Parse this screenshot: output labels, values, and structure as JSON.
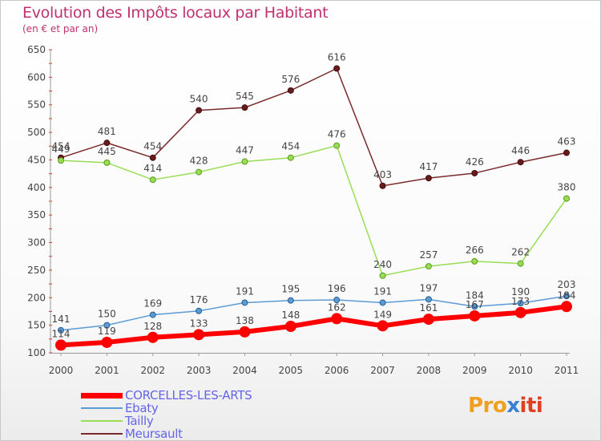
{
  "header": {
    "title": "Evolution des Impôts locaux par Habitant",
    "subtitle": "(en € et par an)"
  },
  "logo": {
    "text_parts": [
      "Pro",
      "x",
      "iti"
    ],
    "colors": [
      "#f0a020",
      "#3a7fd0",
      "#e04020"
    ]
  },
  "chart_data": {
    "type": "line",
    "title": "Evolution des Impôts locaux par Habitant",
    "subtitle": "(en € et par an)",
    "x": [
      "2000",
      "2001",
      "2002",
      "2003",
      "2004",
      "2005",
      "2006",
      "2007",
      "2008",
      "2009",
      "2010",
      "2011"
    ],
    "ylim": [
      100,
      650
    ],
    "yticks": [
      100,
      150,
      200,
      250,
      300,
      350,
      400,
      450,
      500,
      550,
      600,
      650
    ],
    "grid": false,
    "legend": "bottom-left",
    "series": [
      {
        "name": "CORCELLES-LES-ARTS",
        "color": "#ff0000",
        "values": [
          114,
          119,
          128,
          133,
          138,
          148,
          162,
          149,
          161,
          167,
          173,
          184
        ]
      },
      {
        "name": "Ebaty",
        "color": "#5b9bd5",
        "values": [
          141,
          150,
          169,
          176,
          191,
          195,
          196,
          191,
          197,
          184,
          190,
          203
        ]
      },
      {
        "name": "Tailly",
        "color": "#99dd55",
        "values": [
          449,
          445,
          414,
          428,
          447,
          454,
          476,
          240,
          257,
          266,
          262,
          380
        ]
      },
      {
        "name": "Meursault",
        "color": "#7a2a2a",
        "values": [
          454,
          481,
          454,
          540,
          545,
          576,
          616,
          403,
          417,
          426,
          446,
          463
        ]
      }
    ]
  }
}
